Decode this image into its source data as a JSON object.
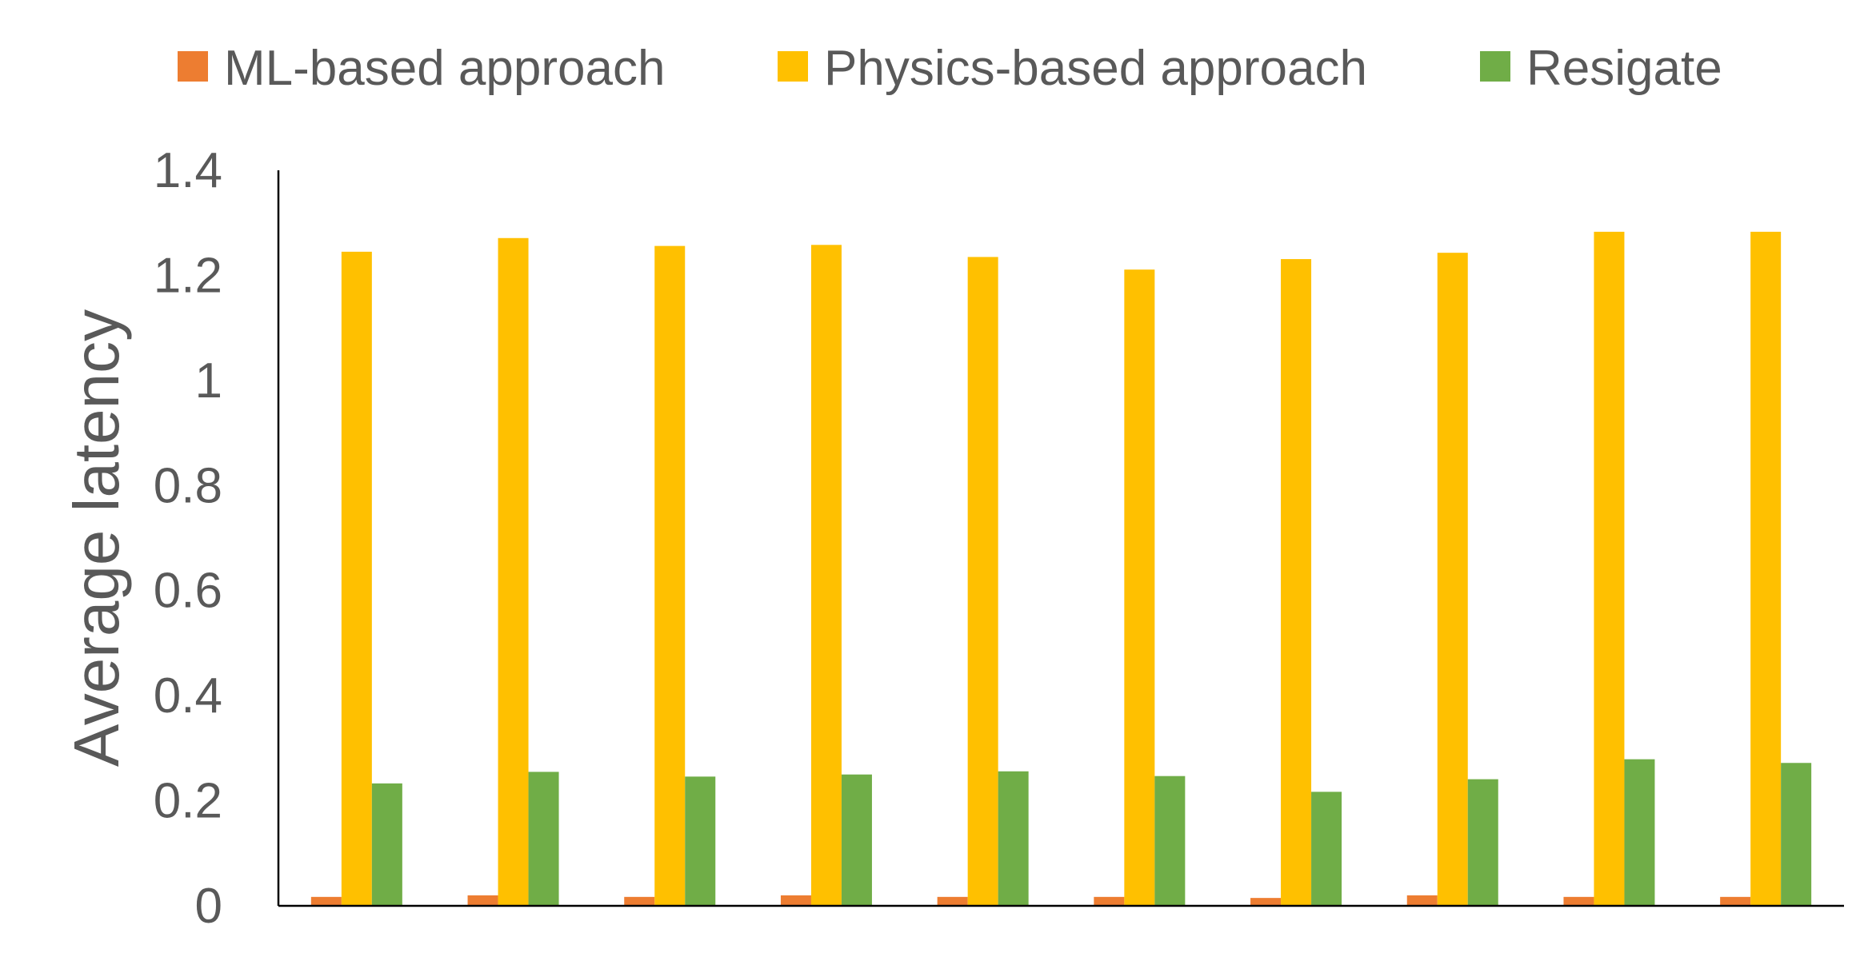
{
  "chart_data": {
    "type": "bar",
    "title": "",
    "xlabel": "",
    "ylabel": "Average latency",
    "ylim": [
      0,
      1.4
    ],
    "yticks": [
      "0",
      "0.2",
      "0.4",
      "0.6",
      "0.8",
      "1",
      "1.2",
      "1.4"
    ],
    "grid": false,
    "legend_position": "top",
    "categories": [
      "",
      "",
      "",
      "",
      "",
      "",
      "",
      "",
      "",
      ""
    ],
    "series": [
      {
        "name": "ML-based approach",
        "color": "#ED7D31",
        "values": [
          0.017,
          0.02,
          0.017,
          0.02,
          0.017,
          0.017,
          0.015,
          0.02,
          0.017,
          0.017
        ]
      },
      {
        "name": "Physics-based approach",
        "color": "#FFC000",
        "values": [
          1.245,
          1.271,
          1.256,
          1.258,
          1.235,
          1.211,
          1.231,
          1.243,
          1.283,
          1.283
        ]
      },
      {
        "name": "Resigate",
        "color": "#70AD47",
        "values": [
          0.233,
          0.255,
          0.246,
          0.25,
          0.256,
          0.247,
          0.217,
          0.241,
          0.279,
          0.272
        ]
      }
    ]
  }
}
